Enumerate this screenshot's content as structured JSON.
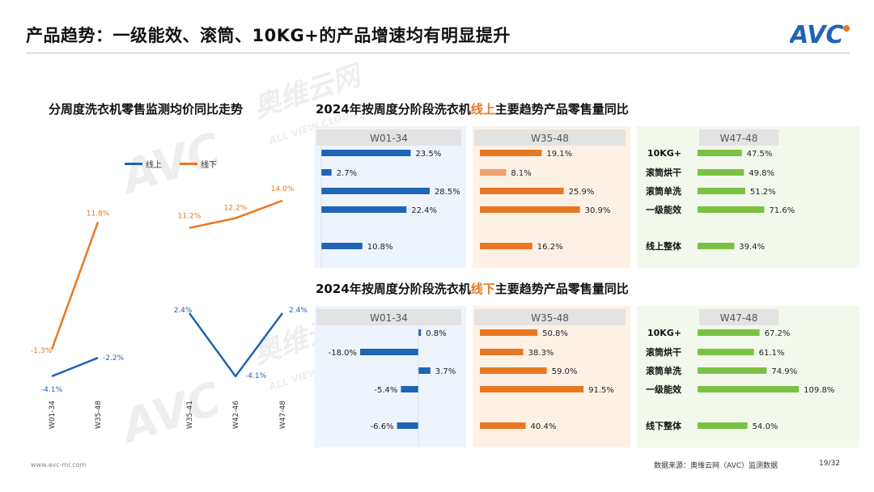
{
  "header": {
    "title": "产品趋势：一级能效、滚筒、10KG+的产品增速均有明显提升",
    "logo_text": "AVC"
  },
  "left_chart": {
    "title": "分周度洗衣机零售监测均价同比走势"
  },
  "top_panel": {
    "title_before": "2024年按周度分阶段洗衣机",
    "title_highlight": "线上",
    "title_after": "主要趋势产品零售量同比"
  },
  "bottom_panel": {
    "title_before": "2024年按周度分阶段洗衣机",
    "title_highlight": "线下",
    "title_after": "主要趋势产品零售量同比"
  },
  "watermark": {
    "brand": "奥维云网",
    "sub": "ALL VIEW CLOUD",
    "logo": "AVC"
  },
  "footer": {
    "website": "www.avc-mr.com",
    "source": "数据来源：奥维云网（AVC）监测数据",
    "page": "19/32"
  },
  "colors": {
    "blue": "#1f64b5",
    "orange": "#e87722",
    "light_orange": "#f0a070",
    "green": "#7ac143",
    "panel_blue_bg": "#eef4fb",
    "panel_orange_bg": "#fdf1e6",
    "panel_green_bg": "#f2f8ec",
    "header_gray": "#e3e3e3"
  },
  "chart_data": [
    {
      "type": "line",
      "id": "price_trend",
      "title": "分周度洗衣机零售监测均价同比走势",
      "categories": [
        "W01-34",
        "W35-48",
        "W35-41",
        "W42-46",
        "W47-48"
      ],
      "series": [
        {
          "name": "线上",
          "color": "#1f64b5",
          "segments": [
            [
              0,
              1
            ],
            [
              2,
              3,
              4
            ]
          ],
          "values": [
            -4.1,
            -2.2,
            2.4,
            -4.1,
            2.4
          ],
          "labels": [
            "-4.1%",
            "-2.2%",
            "2.4%",
            "-4.1%",
            "2.4%"
          ]
        },
        {
          "name": "线下",
          "color": "#e87722",
          "segments": [
            [
              0,
              1
            ],
            [
              2,
              3,
              4
            ]
          ],
          "values": [
            -1.3,
            11.8,
            11.2,
            12.2,
            14.0
          ],
          "labels": [
            "-1.3%",
            "11.8%",
            "11.2%",
            "12.2%",
            "14.0%"
          ]
        }
      ],
      "unit": "%"
    },
    {
      "type": "bar",
      "id": "online_yoy",
      "orientation": "horizontal",
      "title": "2024年按周度分阶段洗衣机线上主要趋势产品零售量同比",
      "categories": [
        "10KG+",
        "滚筒烘干",
        "滚筒单洗",
        "一级能效",
        "线上整体"
      ],
      "series": [
        {
          "name": "W01-34",
          "color": "#1f64b5",
          "values": [
            23.5,
            2.7,
            28.5,
            22.4,
            10.8
          ],
          "labels": [
            "23.5%",
            "2.7%",
            "28.5%",
            "22.4%",
            "10.8%"
          ]
        },
        {
          "name": "W35-48",
          "color": "#e87722",
          "values": [
            19.1,
            8.1,
            25.9,
            30.9,
            16.2
          ],
          "labels": [
            "19.1%",
            "8.1%",
            "25.9%",
            "30.9%",
            "16.2%"
          ]
        },
        {
          "name": "W47-48",
          "color": "#7ac143",
          "values": [
            47.5,
            49.8,
            51.2,
            71.6,
            39.4
          ],
          "labels": [
            "47.5%",
            "49.8%",
            "51.2%",
            "71.6%",
            "39.4%"
          ]
        }
      ],
      "unit": "%"
    },
    {
      "type": "bar",
      "id": "offline_yoy",
      "orientation": "horizontal",
      "title": "2024年按周度分阶段洗衣机线下主要趋势产品零售量同比",
      "categories": [
        "10KG+",
        "滚筒烘干",
        "滚筒单洗",
        "一级能效",
        "线下整体"
      ],
      "series": [
        {
          "name": "W01-34",
          "color": "#1f64b5",
          "values": [
            0.8,
            -18.0,
            3.7,
            -5.4,
            -6.6
          ],
          "labels": [
            "0.8%",
            "-18.0%",
            "3.7%",
            "-5.4%",
            "-6.6%"
          ]
        },
        {
          "name": "W35-48",
          "color": "#e87722",
          "values": [
            50.8,
            38.3,
            59.0,
            91.5,
            40.4
          ],
          "labels": [
            "50.8%",
            "38.3%",
            "59.0%",
            "91.5%",
            "40.4%"
          ]
        },
        {
          "name": "W47-48",
          "color": "#7ac143",
          "values": [
            67.2,
            61.1,
            74.9,
            109.8,
            54.0
          ],
          "labels": [
            "67.2%",
            "61.1%",
            "74.9%",
            "109.8%",
            "54.0%"
          ]
        }
      ],
      "unit": "%"
    }
  ]
}
